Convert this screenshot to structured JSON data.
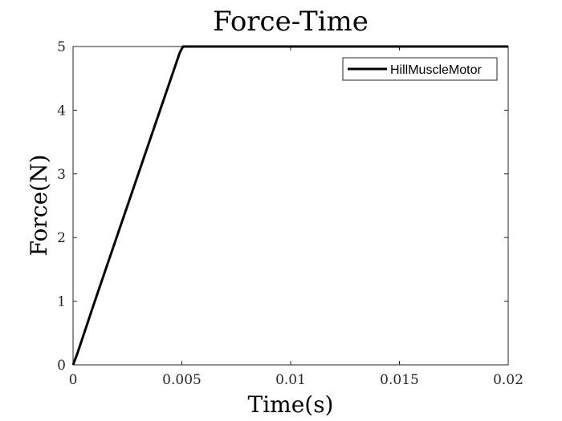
{
  "chart_data": {
    "type": "line",
    "title": "Force-Time",
    "xlabel": "Time(s)",
    "ylabel": "Force(N)",
    "xlim": [
      0,
      0.02
    ],
    "ylim": [
      0,
      5
    ],
    "xticks": [
      0,
      0.005,
      0.01,
      0.015,
      0.02
    ],
    "xtick_labels": [
      "0",
      "0.005",
      "0.01",
      "0.015",
      "0.02"
    ],
    "yticks": [
      0,
      1,
      2,
      3,
      4,
      5
    ],
    "ytick_labels": [
      "0",
      "1",
      "2",
      "3",
      "4",
      "5"
    ],
    "grid": false,
    "legend_position": "top-right",
    "series": [
      {
        "name": "HillMuscleMotor",
        "color": "#000000",
        "x": [
          0,
          0.0002,
          0.001,
          0.002,
          0.003,
          0.004,
          0.0047,
          0.0049,
          0.00505,
          0.0051,
          0.006,
          0.008,
          0.01,
          0.012,
          0.014,
          0.016,
          0.018,
          0.02
        ],
        "y": [
          0,
          0.18,
          1.0,
          2.0,
          3.0,
          4.0,
          4.7,
          4.9,
          5.0,
          5.0,
          5.0,
          5.0,
          5.0,
          5.0,
          5.0,
          5.0,
          5.0,
          5.0
        ]
      }
    ]
  }
}
